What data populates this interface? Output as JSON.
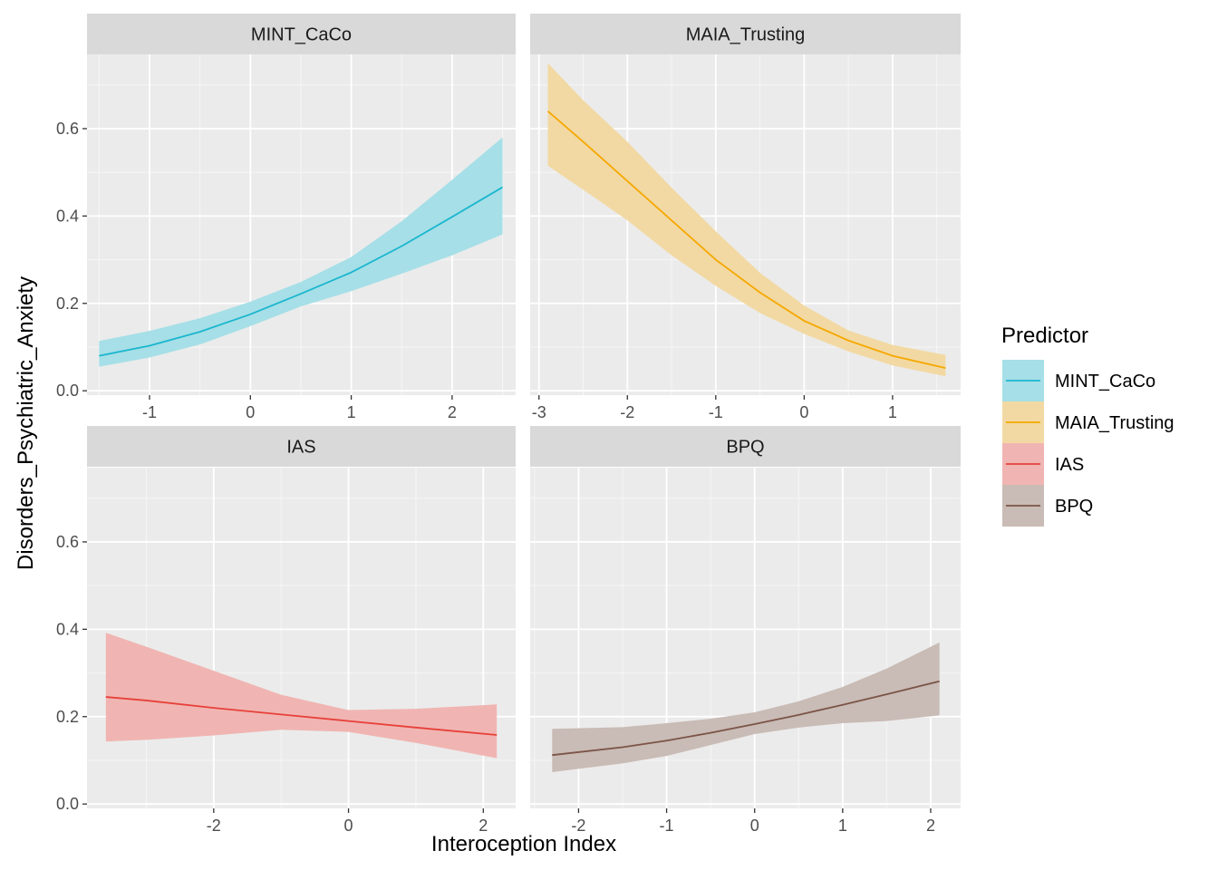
{
  "chart_data": {
    "type": "line",
    "xlabel": "Interoception Index",
    "ylabel": "Disorders_Psychiatric_Anxiety",
    "ylim": [
      -0.01,
      0.77
    ],
    "y_ticks": [
      0.0,
      0.2,
      0.4,
      0.6
    ],
    "y_tick_labels": [
      "0.0",
      "0.2",
      "0.4",
      "0.6"
    ],
    "grid": true,
    "legend": {
      "title": "Predictor",
      "placement": "right",
      "entries": [
        {
          "label": "MINT_CaCo",
          "color": "#1ab6cf"
        },
        {
          "label": "MAIA_Trusting",
          "color": "#f5a800"
        },
        {
          "label": "IAS",
          "color": "#e8403a"
        },
        {
          "label": "BPQ",
          "color": "#7b5447"
        }
      ]
    },
    "panels": [
      {
        "strip": "MINT_CaCo",
        "color": "#1ab6cf",
        "fill": "#a6dfe7",
        "xlim": [
          -1.62,
          2.63
        ],
        "x_ticks": [
          -1,
          0,
          1,
          2
        ],
        "x_tick_labels": [
          "-1",
          "0",
          "1",
          "2"
        ],
        "x": [
          -1.5,
          -1.0,
          -0.5,
          0.0,
          0.5,
          1.0,
          1.5,
          2.0,
          2.5
        ],
        "fit": [
          0.08,
          0.103,
          0.135,
          0.175,
          0.222,
          0.271,
          0.331,
          0.398,
          0.466
        ],
        "lower": [
          0.055,
          0.076,
          0.106,
          0.148,
          0.193,
          0.228,
          0.268,
          0.31,
          0.358
        ],
        "upper": [
          0.114,
          0.137,
          0.166,
          0.204,
          0.249,
          0.306,
          0.388,
          0.483,
          0.58
        ]
      },
      {
        "strip": "MAIA_Trusting",
        "color": "#f5a800",
        "fill": "#f2d9a3",
        "xlim": [
          -3.1,
          1.77
        ],
        "x_ticks": [
          -3,
          -2,
          -1,
          0,
          1
        ],
        "x_tick_labels": [
          "-3",
          "-2",
          "-1",
          "0",
          "1"
        ],
        "x": [
          -2.9,
          -2.5,
          -2.0,
          -1.5,
          -1.0,
          -0.5,
          0.0,
          0.5,
          1.0,
          1.6
        ],
        "fit": [
          0.64,
          0.57,
          0.48,
          0.39,
          0.3,
          0.225,
          0.16,
          0.115,
          0.08,
          0.052
        ],
        "lower": [
          0.515,
          0.46,
          0.39,
          0.31,
          0.24,
          0.178,
          0.13,
          0.09,
          0.058,
          0.033
        ],
        "upper": [
          0.75,
          0.665,
          0.57,
          0.465,
          0.365,
          0.27,
          0.195,
          0.138,
          0.105,
          0.082
        ]
      },
      {
        "strip": "IAS",
        "color": "#e8403a",
        "fill": "#f0b5b2",
        "xlim": [
          -3.88,
          2.48
        ],
        "x_ticks": [
          -2,
          0,
          2
        ],
        "x_tick_labels": [
          "-2",
          "0",
          "2"
        ],
        "x": [
          -3.6,
          -3.0,
          -2.0,
          -1.0,
          0.0,
          1.0,
          2.2
        ],
        "fit": [
          0.245,
          0.237,
          0.22,
          0.205,
          0.19,
          0.175,
          0.158
        ],
        "lower": [
          0.143,
          0.147,
          0.157,
          0.17,
          0.165,
          0.14,
          0.105
        ],
        "upper": [
          0.392,
          0.36,
          0.305,
          0.25,
          0.215,
          0.218,
          0.228
        ]
      },
      {
        "strip": "BPQ",
        "color": "#7b5447",
        "fill": "#c9bbb5",
        "xlim": [
          -2.55,
          2.34
        ],
        "x_ticks": [
          -2,
          -1,
          0,
          1,
          2
        ],
        "x_tick_labels": [
          "-2",
          "-1",
          "0",
          "1",
          "2"
        ],
        "x": [
          -2.3,
          -1.5,
          -1.0,
          -0.5,
          0.0,
          0.5,
          1.0,
          1.5,
          2.1
        ],
        "fit": [
          0.112,
          0.13,
          0.145,
          0.163,
          0.183,
          0.204,
          0.227,
          0.251,
          0.281
        ],
        "lower": [
          0.073,
          0.093,
          0.11,
          0.135,
          0.16,
          0.175,
          0.185,
          0.19,
          0.203
        ],
        "upper": [
          0.172,
          0.176,
          0.185,
          0.195,
          0.21,
          0.235,
          0.268,
          0.31,
          0.37
        ]
      }
    ]
  }
}
